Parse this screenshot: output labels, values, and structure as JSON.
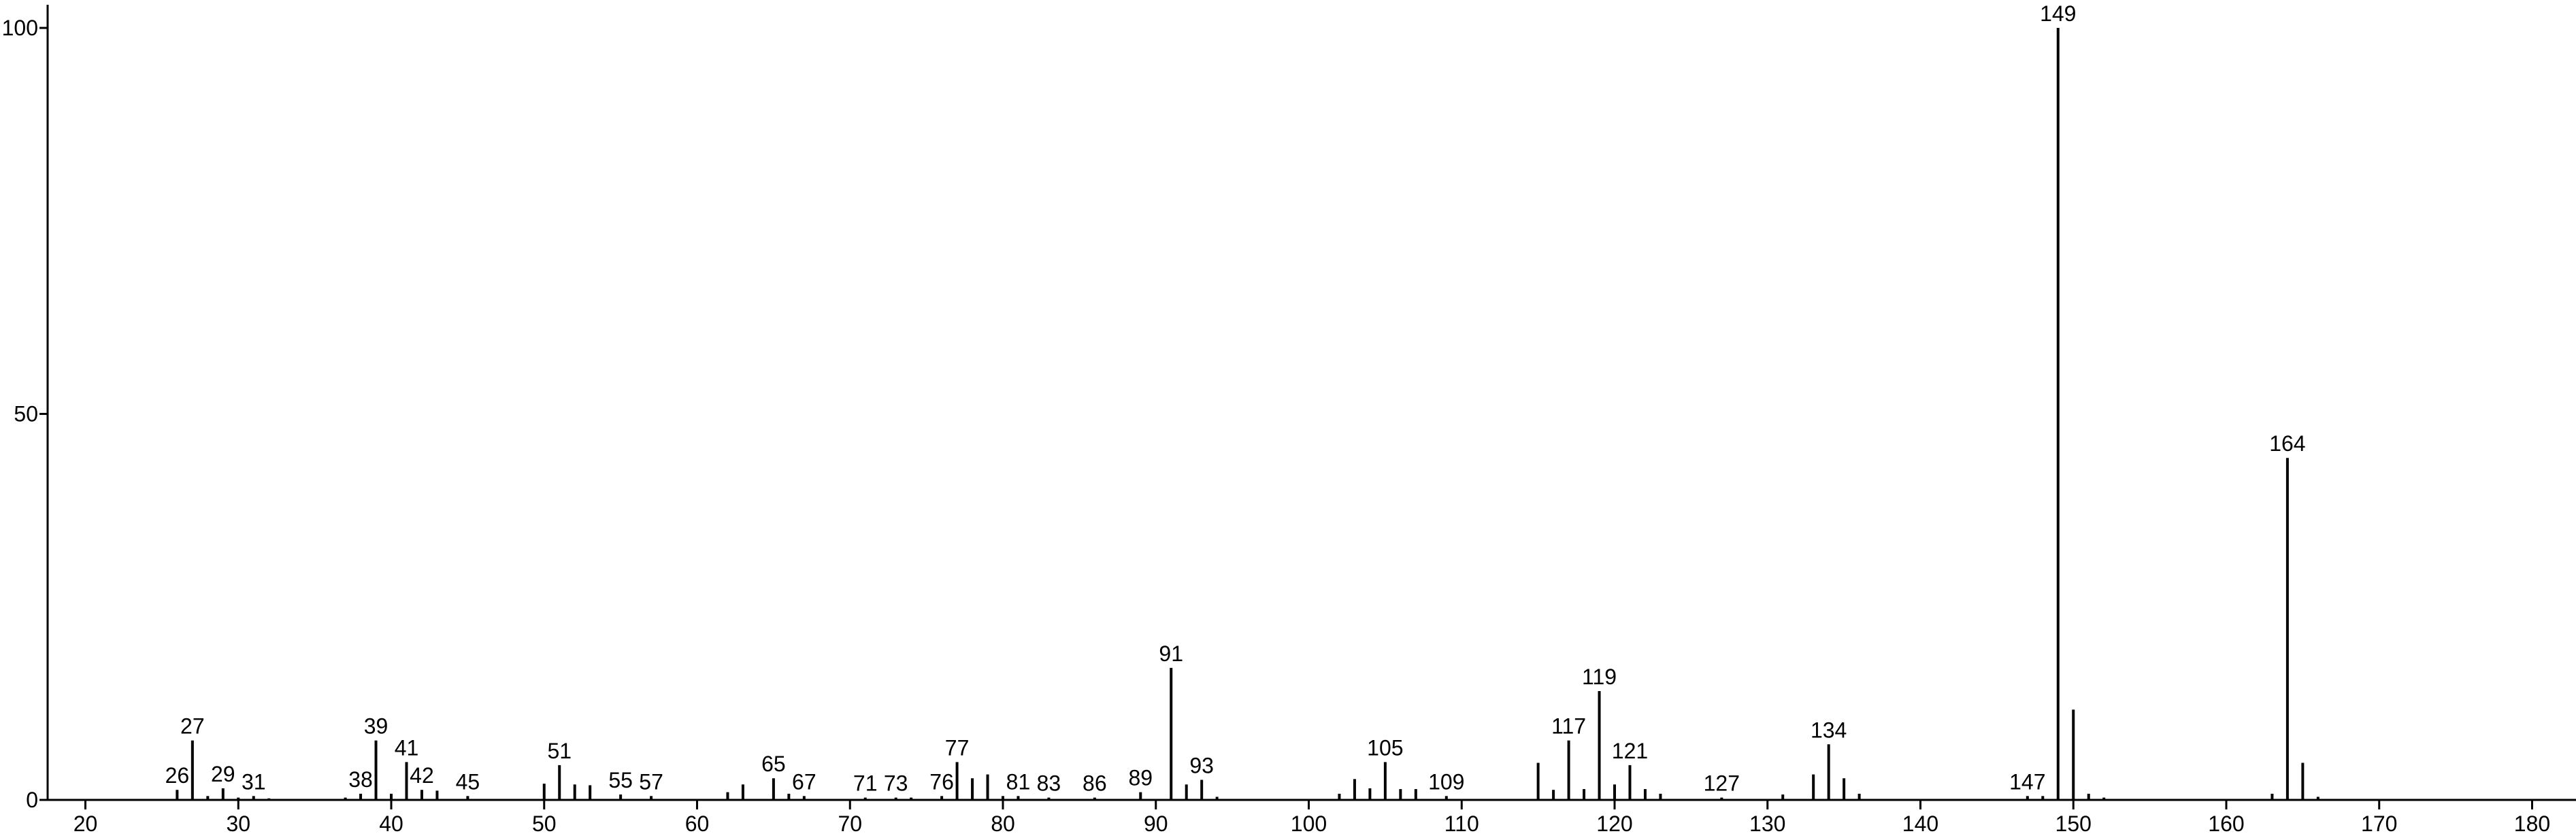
{
  "chart_data": {
    "type": "stem",
    "x": [
      26,
      27,
      28,
      29,
      30,
      31,
      32,
      37,
      38,
      39,
      40,
      41,
      42,
      43,
      45,
      50,
      51,
      52,
      53,
      55,
      57,
      62,
      63,
      65,
      66,
      67,
      71,
      73,
      74,
      76,
      77,
      78,
      79,
      80,
      81,
      83,
      86,
      89,
      91,
      92,
      93,
      94,
      102,
      103,
      104,
      105,
      106,
      107,
      109,
      115,
      116,
      117,
      118,
      119,
      120,
      121,
      122,
      123,
      127,
      131,
      133,
      134,
      135,
      136,
      147,
      148,
      149,
      150,
      151,
      152,
      163,
      164,
      165,
      166
    ],
    "values": [
      1.3,
      7.7,
      0.5,
      1.5,
      0.3,
      0.5,
      0.2,
      0.3,
      0.8,
      7.7,
      0.8,
      4.9,
      1.3,
      1.2,
      0.5,
      2.1,
      4.5,
      2.0,
      1.9,
      0.7,
      0.5,
      1.0,
      2.0,
      2.8,
      0.8,
      0.5,
      0.3,
      0.3,
      0.3,
      0.5,
      4.9,
      2.8,
      3.3,
      0.5,
      0.5,
      0.3,
      0.3,
      1.0,
      17.1,
      2.0,
      2.6,
      0.4,
      0.8,
      2.7,
      1.5,
      4.9,
      1.4,
      1.4,
      0.5,
      4.8,
      1.3,
      7.7,
      1.4,
      14.1,
      2.0,
      4.5,
      1.4,
      0.8,
      0.3,
      0.7,
      3.3,
      7.2,
      2.8,
      0.8,
      0.5,
      0.5,
      100,
      11.7,
      0.8,
      0.3,
      0.8,
      44.3,
      4.8,
      0.4
    ],
    "peak_labels": [
      26,
      27,
      29,
      31,
      38,
      39,
      41,
      42,
      45,
      51,
      55,
      57,
      65,
      67,
      71,
      73,
      76,
      77,
      81,
      83,
      86,
      89,
      91,
      93,
      105,
      109,
      117,
      119,
      121,
      127,
      134,
      147,
      149,
      164
    ],
    "color": "#000000",
    "xlim": [
      17.53,
      182.87
    ],
    "xticks": [
      20,
      30,
      40,
      50,
      60,
      70,
      80,
      90,
      100,
      110,
      120,
      130,
      140,
      150,
      160,
      170,
      180
    ],
    "ylim": [
      0,
      103
    ],
    "yticks": [
      0,
      50,
      100
    ]
  }
}
